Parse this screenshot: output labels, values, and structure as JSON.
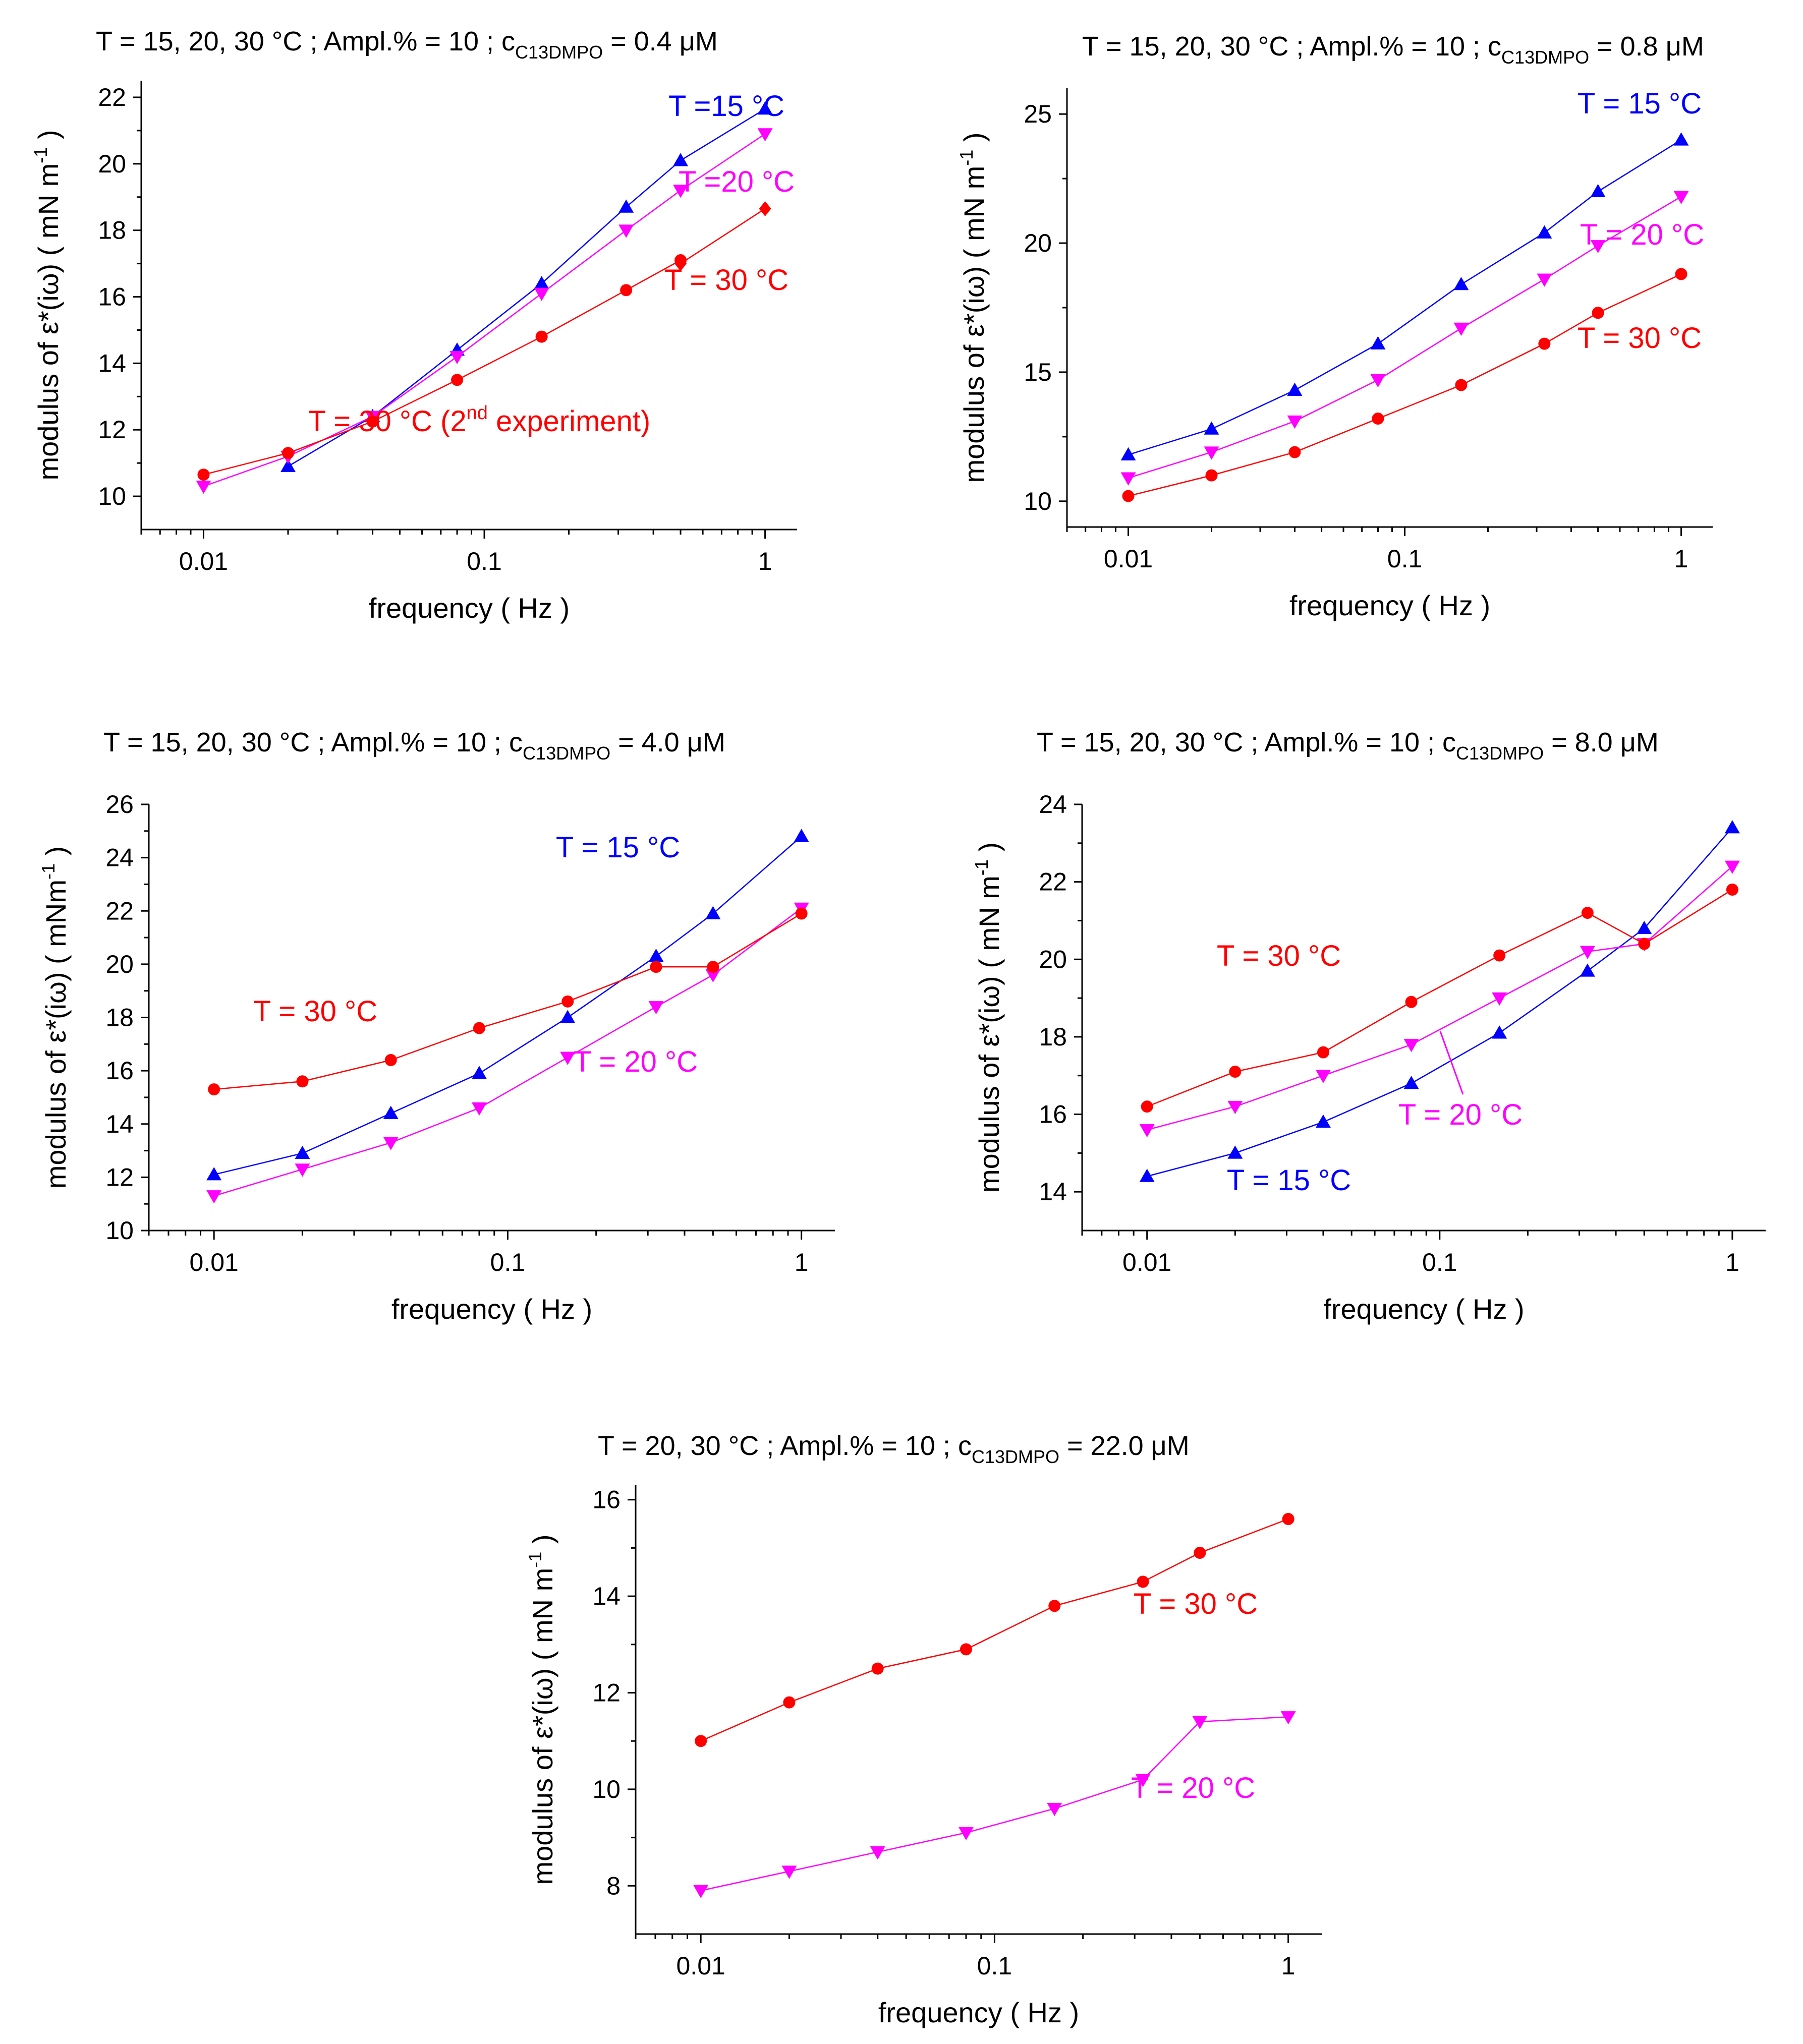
{
  "figure_label": "Five panels: modulus of complex dilational elasticity vs frequency for C13DMPO solutions",
  "colors": {
    "T15": "#0000ff",
    "T20": "#ff00ff",
    "T30": "#ff0000",
    "axis": "#000000"
  },
  "chart_data": [
    {
      "type": "line",
      "panel_id": "p1",
      "title_prefix": "T = 15, 20, 30 °C ;  Ampl.% = 10 ;  c",
      "title_subscript": "C13DMPO",
      "title_suffix": " = 0.4 μM",
      "xlabel": "frequency ( Hz )",
      "ylabel": "modulus of ε*(iω)  ( mN m",
      "ylabel_sup": "-1",
      "ylabel_end": " )",
      "xscale": "log",
      "xlim": [
        0.006,
        1.3
      ],
      "ylim": [
        9,
        22.5
      ],
      "yticks": [
        10,
        12,
        14,
        16,
        18,
        20,
        22
      ],
      "xticks": [
        0.01,
        0.1,
        1
      ],
      "xtick_labels": [
        "0.01",
        "0.1",
        "1"
      ],
      "series": [
        {
          "name": "T =15 °C",
          "color": "#0000ff",
          "marker": "triangle-up",
          "x": [
            0.02,
            0.04,
            0.08,
            0.16,
            0.32,
            0.5,
            1
          ],
          "y": [
            10.9,
            12.4,
            14.4,
            16.4,
            18.7,
            20.1,
            21.65
          ]
        },
        {
          "name": "T =20 °C",
          "color": "#ff00ff",
          "marker": "triangle-down",
          "x": [
            0.01,
            0.02,
            0.04,
            0.08,
            0.16,
            0.32,
            0.5,
            1
          ],
          "y": [
            10.3,
            11.2,
            12.4,
            14.2,
            16.1,
            18.0,
            19.2,
            20.9
          ]
        },
        {
          "name": "T = 30 °C",
          "color": "#ff0000",
          "marker": "diamond",
          "x": [
            0.5,
            1
          ],
          "y": [
            17.0,
            18.65
          ]
        },
        {
          "name": "T = 30 °C  (2nd experiment)",
          "color": "#ff0000",
          "marker": "circle",
          "x": [
            0.01,
            0.02,
            0.04,
            0.08,
            0.16,
            0.32,
            0.5
          ],
          "y": [
            10.65,
            11.3,
            12.25,
            13.5,
            14.8,
            16.2,
            17.1
          ]
        }
      ],
      "annotations": [
        {
          "text": "T =15 °C",
          "color": "#0000ff"
        },
        {
          "text": "T =20 °C",
          "color": "#ff00ff"
        },
        {
          "text": "T = 30 °C",
          "color": "#ff0000"
        },
        {
          "text": "T = 30 °C  (2",
          "sup": "nd",
          "after": " experiment)",
          "color": "#ff0000"
        }
      ]
    },
    {
      "type": "line",
      "panel_id": "p2",
      "title_prefix": "T = 15, 20, 30 °C ;  Ampl.% = 10 ;  c",
      "title_subscript": "C13DMPO",
      "title_suffix": " = 0.8 μM",
      "xlabel": "frequency ( Hz )",
      "ylabel": "modulus of ε*(iω)  ( mN m",
      "ylabel_sup": "-1",
      "ylabel_end": " )",
      "xscale": "log",
      "xlim": [
        0.006,
        1.3
      ],
      "ylim": [
        9,
        26
      ],
      "yticks": [
        10,
        15,
        20,
        25
      ],
      "xticks": [
        0.01,
        0.1,
        1
      ],
      "xtick_labels": [
        "0.01",
        "0.1",
        "1"
      ],
      "series": [
        {
          "name": "T = 15 °C",
          "color": "#0000ff",
          "marker": "triangle-up",
          "x": [
            0.01,
            0.02,
            0.04,
            0.08,
            0.16,
            0.32,
            0.5,
            1
          ],
          "y": [
            11.8,
            12.8,
            14.3,
            16.1,
            18.4,
            20.4,
            22.0,
            24.0
          ]
        },
        {
          "name": "T = 20 °C",
          "color": "#ff00ff",
          "marker": "triangle-down",
          "x": [
            0.01,
            0.02,
            0.04,
            0.08,
            0.16,
            0.32,
            0.5,
            1
          ],
          "y": [
            10.9,
            11.9,
            13.1,
            14.7,
            16.7,
            18.6,
            19.9,
            21.8
          ]
        },
        {
          "name": "T = 30 °C",
          "color": "#ff0000",
          "marker": "circle",
          "x": [
            0.01,
            0.02,
            0.04,
            0.08,
            0.16,
            0.32,
            0.5,
            1
          ],
          "y": [
            10.2,
            11.0,
            11.9,
            13.2,
            14.5,
            16.1,
            17.3,
            18.8
          ]
        }
      ],
      "annotations": [
        {
          "text": "T = 15 °C",
          "color": "#0000ff"
        },
        {
          "text": "T = 20 °C",
          "color": "#ff00ff"
        },
        {
          "text": "T = 30 °C",
          "color": "#ff0000"
        }
      ]
    },
    {
      "type": "line",
      "panel_id": "p3",
      "title_prefix": "T = 15, 20, 30 °C ;  Ampl.% = 10 ;  c",
      "title_subscript": "C13DMPO",
      "title_suffix": " = 4.0 μM",
      "xlabel": "frequency ( Hz )",
      "ylabel": "modulus of ε*(iω)  ( mNm",
      "ylabel_sup": "-1",
      "ylabel_end": " )",
      "xscale": "log",
      "xlim": [
        0.006,
        1.3
      ],
      "ylim": [
        10,
        26
      ],
      "yticks": [
        10,
        12,
        14,
        16,
        18,
        20,
        22,
        24,
        26
      ],
      "xticks": [
        0.01,
        0.1,
        1
      ],
      "xtick_labels": [
        "0.01",
        "0.1",
        "1"
      ],
      "series": [
        {
          "name": "T = 15 °C",
          "color": "#0000ff",
          "marker": "triangle-up",
          "x": [
            0.01,
            0.02,
            0.04,
            0.08,
            0.16,
            0.32,
            0.5,
            1
          ],
          "y": [
            12.1,
            12.9,
            14.4,
            15.9,
            18.0,
            20.3,
            21.9,
            24.8
          ]
        },
        {
          "name": "T = 20 °C",
          "color": "#ff00ff",
          "marker": "triangle-down",
          "x": [
            0.01,
            0.02,
            0.04,
            0.08,
            0.16,
            0.32,
            0.5,
            1
          ],
          "y": [
            11.3,
            12.3,
            13.3,
            14.6,
            16.5,
            18.4,
            19.6,
            22.1
          ]
        },
        {
          "name": "T = 30 °C",
          "color": "#ff0000",
          "marker": "circle",
          "x": [
            0.01,
            0.02,
            0.04,
            0.08,
            0.16,
            0.32,
            0.5,
            1
          ],
          "y": [
            15.3,
            15.6,
            16.4,
            17.6,
            18.6,
            19.9,
            19.9,
            21.9
          ]
        }
      ],
      "annotations": [
        {
          "text": "T = 15 °C",
          "color": "#0000ff"
        },
        {
          "text": "T = 30 °C",
          "color": "#ff0000"
        },
        {
          "text": "T = 20 °C",
          "color": "#ff00ff"
        }
      ]
    },
    {
      "type": "line",
      "panel_id": "p4",
      "title_prefix": "T = 15, 20, 30 °C ;  Ampl.% = 10 ;  c",
      "title_subscript": "C13DMPO",
      "title_suffix": " = 8.0 μM",
      "xlabel": "frequency ( Hz )",
      "ylabel": "modulus of ε*(iω)  ( mN m",
      "ylabel_sup": "-1",
      "ylabel_end": " )",
      "xscale": "log",
      "xlim": [
        0.006,
        1.3
      ],
      "ylim": [
        13,
        24
      ],
      "yticks": [
        14,
        16,
        18,
        20,
        22,
        24
      ],
      "xticks": [
        0.01,
        0.1,
        1
      ],
      "xtick_labels": [
        "0.01",
        "0.1",
        "1"
      ],
      "series": [
        {
          "name": "T = 15 °C",
          "color": "#0000ff",
          "marker": "triangle-up",
          "x": [
            0.01,
            0.02,
            0.04,
            0.08,
            0.16,
            0.32,
            0.5,
            1
          ],
          "y": [
            14.4,
            15.0,
            15.8,
            16.8,
            18.1,
            19.7,
            20.8,
            23.4
          ]
        },
        {
          "name": "T = 20 °C",
          "color": "#ff00ff",
          "marker": "triangle-down",
          "x": [
            0.01,
            0.02,
            0.04,
            0.08,
            0.16,
            0.32,
            0.5,
            1
          ],
          "y": [
            15.6,
            16.2,
            17.0,
            17.8,
            19.0,
            20.2,
            20.4,
            22.4
          ]
        },
        {
          "name": "T = 30 °C",
          "color": "#ff0000",
          "marker": "circle",
          "x": [
            0.01,
            0.02,
            0.04,
            0.08,
            0.16,
            0.32,
            0.5,
            1
          ],
          "y": [
            16.2,
            17.1,
            17.6,
            18.9,
            20.1,
            21.2,
            20.4,
            21.8
          ]
        }
      ],
      "annotations": [
        {
          "text": "T = 30 °C",
          "color": "#ff0000"
        },
        {
          "text": "T = 20 °C",
          "color": "#ff00ff"
        },
        {
          "text": "T = 15 °C",
          "color": "#0000ff"
        }
      ]
    },
    {
      "type": "line",
      "panel_id": "p5",
      "title_prefix": "T = 20, 30 °C ;     Ampl.% = 10 ;  c",
      "title_subscript": "C13DMPO",
      "title_suffix": " =  22.0 μM",
      "xlabel": "frequency  ( Hz )",
      "ylabel": "modulus of ε*(iω)  ( mN m",
      "ylabel_sup": "-1",
      "ylabel_end": " )",
      "xscale": "log",
      "xlim": [
        0.006,
        1.3
      ],
      "ylim": [
        7,
        16.3
      ],
      "yticks": [
        8,
        10,
        12,
        14,
        16
      ],
      "xticks": [
        0.01,
        0.1,
        1
      ],
      "xtick_labels": [
        "0.01",
        "0.1",
        "1"
      ],
      "series": [
        {
          "name": "T = 30 °C",
          "color": "#ff0000",
          "marker": "circle",
          "x": [
            0.01,
            0.02,
            0.04,
            0.08,
            0.16,
            0.32,
            0.5,
            1
          ],
          "y": [
            11.0,
            11.8,
            12.5,
            12.9,
            13.8,
            14.3,
            14.9,
            15.6
          ]
        },
        {
          "name": "T = 20 °C",
          "color": "#ff00ff",
          "marker": "triangle-down",
          "x": [
            0.01,
            0.02,
            0.04,
            0.08,
            0.16,
            0.32,
            0.5,
            1
          ],
          "y": [
            7.9,
            8.3,
            8.7,
            9.1,
            9.6,
            10.2,
            11.4,
            11.5
          ]
        }
      ],
      "annotations": [
        {
          "text": "T = 30 °C",
          "color": "#ff0000"
        },
        {
          "text": "T = 20 °C",
          "color": "#ff00ff"
        }
      ]
    }
  ]
}
